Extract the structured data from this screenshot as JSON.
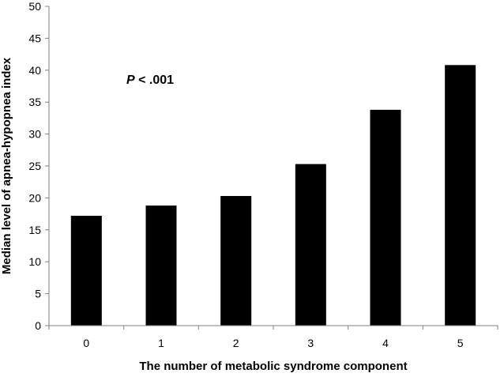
{
  "chart_data": {
    "type": "bar",
    "categories": [
      "0",
      "1",
      "2",
      "3",
      "4",
      "5"
    ],
    "values": [
      17.2,
      18.8,
      20.3,
      25.3,
      33.8,
      40.8
    ],
    "title": "",
    "xlabel": "The number of metabolic syndrome component",
    "ylabel": "Median level of apnea-hypopnea index",
    "ylim": [
      0,
      50
    ],
    "yticks": [
      0,
      5,
      10,
      15,
      20,
      25,
      30,
      35,
      40,
      45,
      50
    ],
    "grid": false,
    "legend": "none",
    "bar_color": "#000000",
    "annotation": {
      "italic_part": "P",
      "rest": " < .001"
    }
  }
}
